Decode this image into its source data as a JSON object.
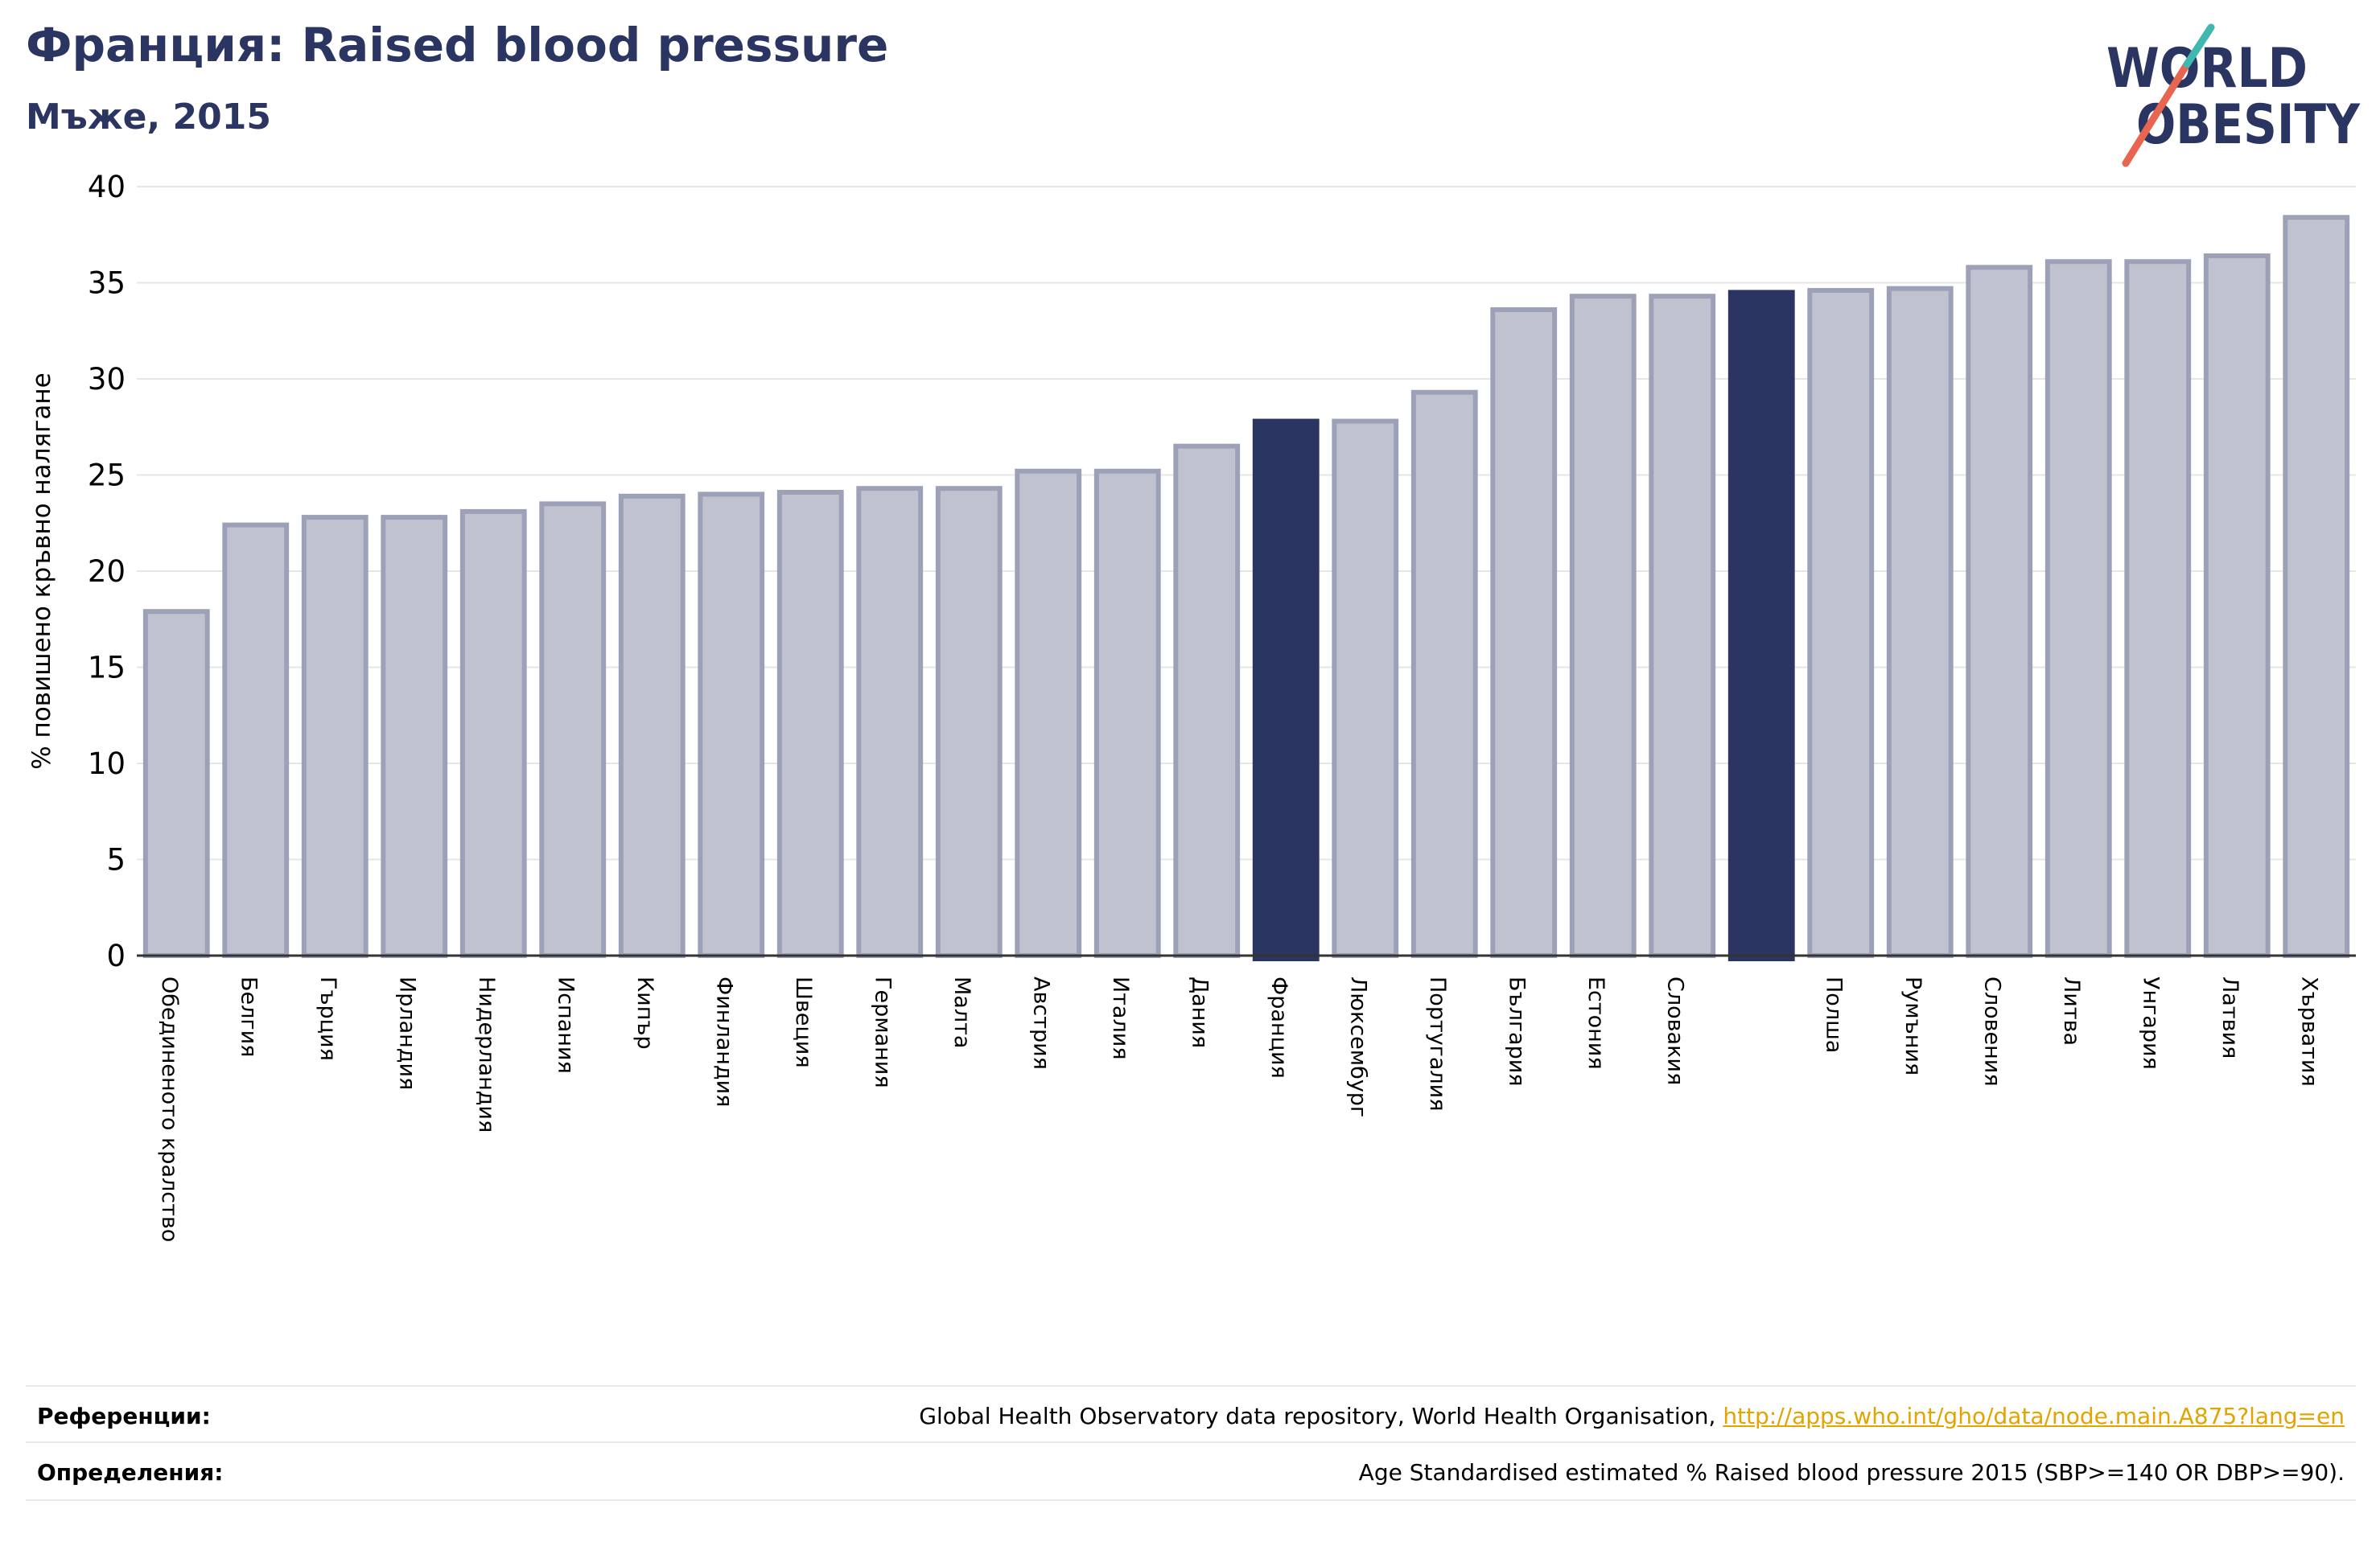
{
  "header": {
    "title": "Франция: Raised blood pressure",
    "subtitle": "Мъже, 2015"
  },
  "logo": {
    "line1": "WORLD",
    "line2": "OBESITY",
    "colors": {
      "text": "#2b3561",
      "slash_red": "#e8654f",
      "slash_teal": "#3fb8b0"
    }
  },
  "chart_data": {
    "type": "bar",
    "ylabel": "% повишено кръвно налягане",
    "xlabel": "",
    "ylim": [
      0,
      40
    ],
    "yticks": [
      0,
      5,
      10,
      15,
      20,
      25,
      30,
      35,
      40
    ],
    "grid": true,
    "colors": {
      "default": "#c0c3cf",
      "default_border": "#9da1b8",
      "highlight": "#2b3561"
    },
    "categories": [
      "Обединеното кралство",
      "Белгия",
      "Гърция",
      "Ирландия",
      "Нидерландия",
      "Испания",
      "Кипър",
      "Финландия",
      "Швеция",
      "Германия",
      "Малта",
      "Австрия",
      "Италия",
      "Дания",
      "Франция",
      "Люксембург",
      "Португалия",
      "България",
      "Естония",
      "Словакия",
      "",
      "Полша",
      "Румъния",
      "Словения",
      "Литва",
      "Унгария",
      "Латвия",
      "Хърватия"
    ],
    "values": [
      17.9,
      22.4,
      22.8,
      22.8,
      23.1,
      23.5,
      23.9,
      24.0,
      24.1,
      24.3,
      24.3,
      25.2,
      25.2,
      26.5,
      27.8,
      27.8,
      29.3,
      33.6,
      34.3,
      34.3,
      34.5,
      34.6,
      34.7,
      35.8,
      36.1,
      36.1,
      36.4,
      38.4
    ],
    "highlight": [
      14,
      20
    ]
  },
  "references": {
    "refs_label": "Референции:",
    "refs_text": "Global Health Observatory data repository, World Health Organisation, ",
    "refs_link": "http://apps.who.int/gho/data/node.main.A875?lang=en",
    "defs_label": "Определения:",
    "defs_text": "Age Standardised estimated % Raised blood pressure 2015 (SBP>=140 OR DBP>=90)."
  }
}
